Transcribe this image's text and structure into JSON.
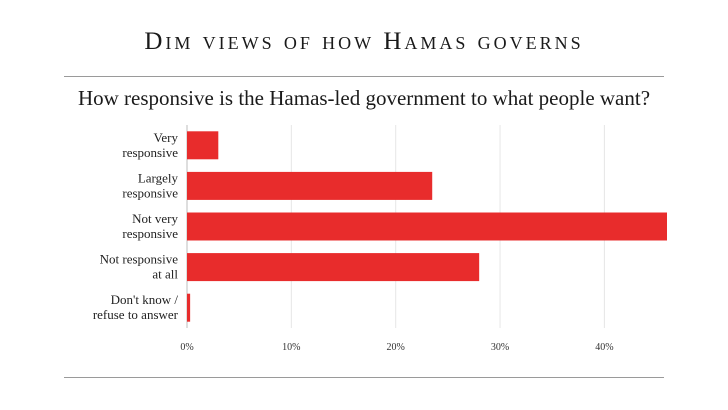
{
  "title": "Dim views of how Hamas governs",
  "subtitle": "How responsive is the Hamas-led government to what people want?",
  "chart_data": {
    "type": "bar",
    "orientation": "horizontal",
    "title": "Dim views of how Hamas governs",
    "subtitle": "How responsive is the Hamas-led government to what people want?",
    "categories": [
      [
        "Very",
        "responsive"
      ],
      [
        "Largely",
        "responsive"
      ],
      [
        "Not very",
        "responsive"
      ],
      [
        "Not responsive",
        "at all"
      ],
      [
        "Don't know /",
        "refuse to answer"
      ]
    ],
    "values": [
      3,
      23.5,
      46,
      28,
      0.3
    ],
    "xlim": [
      0,
      46
    ],
    "ticks": [
      "0%",
      "10%",
      "20%",
      "30%",
      "40%"
    ],
    "tick_values": [
      0,
      10,
      20,
      30,
      40
    ],
    "bar_color": "#e82c2c",
    "grid": true
  }
}
